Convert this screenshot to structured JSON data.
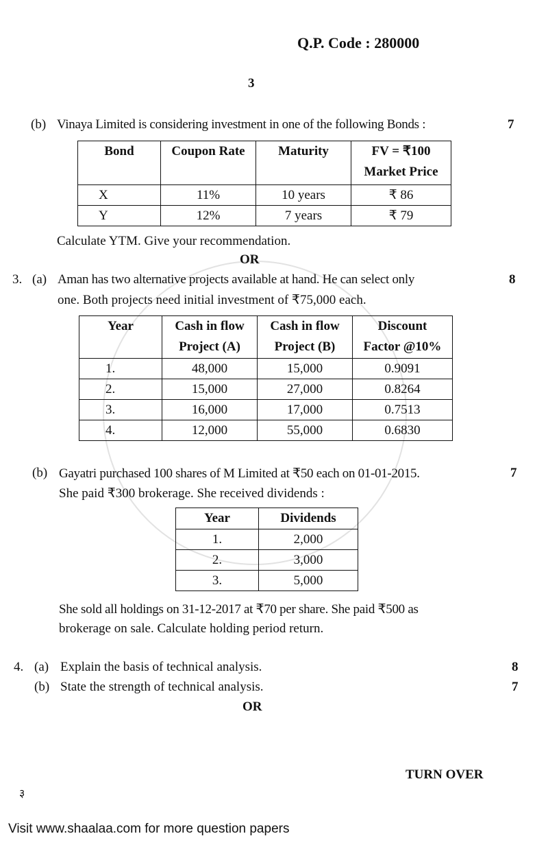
{
  "header": {
    "qp_code": "Q.P. Code : 280000",
    "page_number": "3"
  },
  "q2b": {
    "label": "(b)",
    "text": "Vinaya Limited is considering investment in one of the following Bonds :",
    "marks": "7",
    "table": {
      "headers": [
        "Bond",
        "Coupon Rate",
        "Maturity",
        "FV = ₹100",
        "Market Price"
      ],
      "rows": [
        [
          "X",
          "11%",
          "10 years",
          "₹ 86"
        ],
        [
          "Y",
          "12%",
          "7 years",
          "₹ 79"
        ]
      ]
    },
    "instruction": "Calculate YTM. Give your recommendation."
  },
  "or1": "OR",
  "q3a": {
    "number": "3.",
    "label": "(a)",
    "line1": "Aman has two alternative projects available at hand. He can select only",
    "line2": "one. Both projects need initial investment of ₹75,000 each.",
    "marks": "8",
    "table": {
      "headers": [
        [
          "Year",
          ""
        ],
        [
          "Cash in flow",
          "Project (A)"
        ],
        [
          "Cash in flow",
          "Project (B)"
        ],
        [
          "Discount",
          "Factor @10%"
        ]
      ],
      "rows": [
        [
          "1.",
          "48,000",
          "15,000",
          "0.9091"
        ],
        [
          "2.",
          "15,000",
          "27,000",
          "0.8264"
        ],
        [
          "3.",
          "16,000",
          "17,000",
          "0.7513"
        ],
        [
          "4.",
          "12,000",
          "55,000",
          "0.6830"
        ]
      ]
    }
  },
  "q3b": {
    "label": "(b)",
    "line1": "Gayatri purchased 100 shares of M Limited at ₹50 each on 01-01-2015.",
    "line2": "She paid ₹300 brokerage. She received dividends :",
    "marks": "7",
    "table": {
      "headers": [
        "Year",
        "Dividends"
      ],
      "rows": [
        [
          "1.",
          "2,000"
        ],
        [
          "2.",
          "3,000"
        ],
        [
          "3.",
          "5,000"
        ]
      ]
    },
    "line3": "She sold all holdings on 31-12-2017 at ₹70 per share. She paid ₹500 as",
    "line4": "brokerage on sale. Calculate holding period return."
  },
  "q4": {
    "number": "4.",
    "a_label": "(a)",
    "a_text": "Explain the basis of technical analysis.",
    "a_marks": "8",
    "b_label": "(b)",
    "b_text": "State the strength of technical analysis.",
    "b_marks": "7"
  },
  "or2": "OR",
  "turn_over": "TURN OVER",
  "corner_mark": "३",
  "footer": "Visit www.shaalaa.com for more question papers",
  "watermark": "shaalaa.com"
}
